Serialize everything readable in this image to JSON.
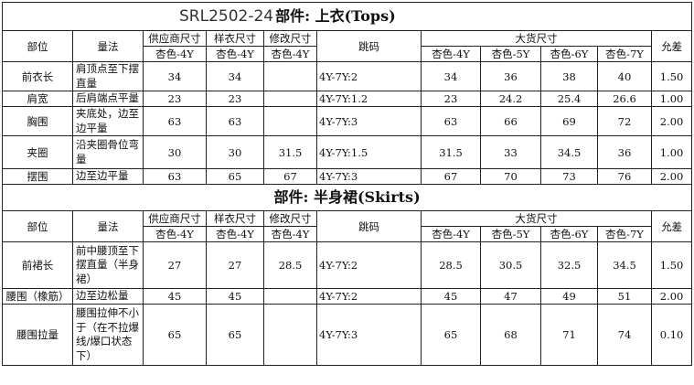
{
  "tops": {
    "style_code": "SRL2502-24",
    "title": "部件: 上衣(Tops)",
    "headers": {
      "part": "部位",
      "method": "量法",
      "supplier": "供应商尺寸",
      "sample": "样衣尺寸",
      "revised": "修改尺寸",
      "grading": "跳码",
      "bulk": "大货尺寸",
      "tolerance": "允差",
      "supplier_size": "杏色-4Y",
      "sample_size": "杏色-4Y",
      "revised_size": "杏色-4Y",
      "bulk_sizes": [
        "杏色-4Y",
        "杏色-5Y",
        "杏色-6Y",
        "杏色-7Y"
      ]
    },
    "rows": [
      {
        "part": "前衣长",
        "method": "肩顶点至下摆直量",
        "supplier": "34",
        "sample": "34",
        "revised": "",
        "grading": "4Y-7Y:2",
        "bulk": [
          "34",
          "36",
          "38",
          "40"
        ],
        "tol": "1.50"
      },
      {
        "part": "肩宽",
        "method": "后肩端点平量",
        "supplier": "23",
        "sample": "23",
        "revised": "",
        "grading": "4Y-7Y:1.2",
        "bulk": [
          "23",
          "24.2",
          "25.4",
          "26.6"
        ],
        "tol": "1.00"
      },
      {
        "part": "胸围",
        "method": "夹底处，边至边平量",
        "supplier": "63",
        "sample": "63",
        "revised": "",
        "grading": "4Y-7Y:3",
        "bulk": [
          "63",
          "66",
          "69",
          "72"
        ],
        "tol": "2.00"
      },
      {
        "part": "夹圈",
        "method": "沿夹圈骨位弯量",
        "supplier": "30",
        "sample": "30",
        "revised": "31.5",
        "grading": "4Y-7Y:1.5",
        "bulk": [
          "31.5",
          "33",
          "34.5",
          "36"
        ],
        "tol": "1.00"
      },
      {
        "part": "摆围",
        "method": "边至边平量",
        "supplier": "63",
        "sample": "65",
        "revised": "67",
        "grading": "4Y-7Y:3",
        "bulk": [
          "67",
          "70",
          "73",
          "76"
        ],
        "tol": "2.00"
      }
    ]
  },
  "skirts": {
    "title": "部件: 半身裙(Skirts)",
    "headers": {
      "part": "部位",
      "method": "量法",
      "supplier": "供应商尺寸",
      "sample": "样衣尺寸",
      "revised": "修改尺寸",
      "grading": "跳码",
      "bulk": "大货尺寸",
      "tolerance": "允差",
      "supplier_size": "杏色-4Y",
      "sample_size": "杏色-4Y",
      "revised_size": "杏色-4Y",
      "bulk_sizes": [
        "杏色-4Y",
        "杏色-5Y",
        "杏色-6Y",
        "杏色-7Y"
      ]
    },
    "rows": [
      {
        "part": "前裙长",
        "method": "前中腰顶至下摆直量（半身裙）",
        "supplier": "27",
        "sample": "27",
        "revised": "28.5",
        "grading": "4Y-7Y:2",
        "bulk": [
          "28.5",
          "30.5",
          "32.5",
          "34.5"
        ],
        "tol": "1.50"
      },
      {
        "part": "腰围（橡筋）",
        "method": "边至边松量",
        "supplier": "45",
        "sample": "45",
        "revised": "",
        "grading": "4Y-7Y:2",
        "bulk": [
          "45",
          "47",
          "49",
          "51"
        ],
        "tol": "2.00"
      },
      {
        "part": "腰围拉量",
        "method": "腰围拉伸不小于（在不拉爆线/爆口状态下）",
        "supplier": "65",
        "sample": "65",
        "revised": "",
        "grading": "4Y-7Y:3",
        "bulk": [
          "65",
          "68",
          "71",
          "74"
        ],
        "tol": "0.10"
      }
    ]
  }
}
